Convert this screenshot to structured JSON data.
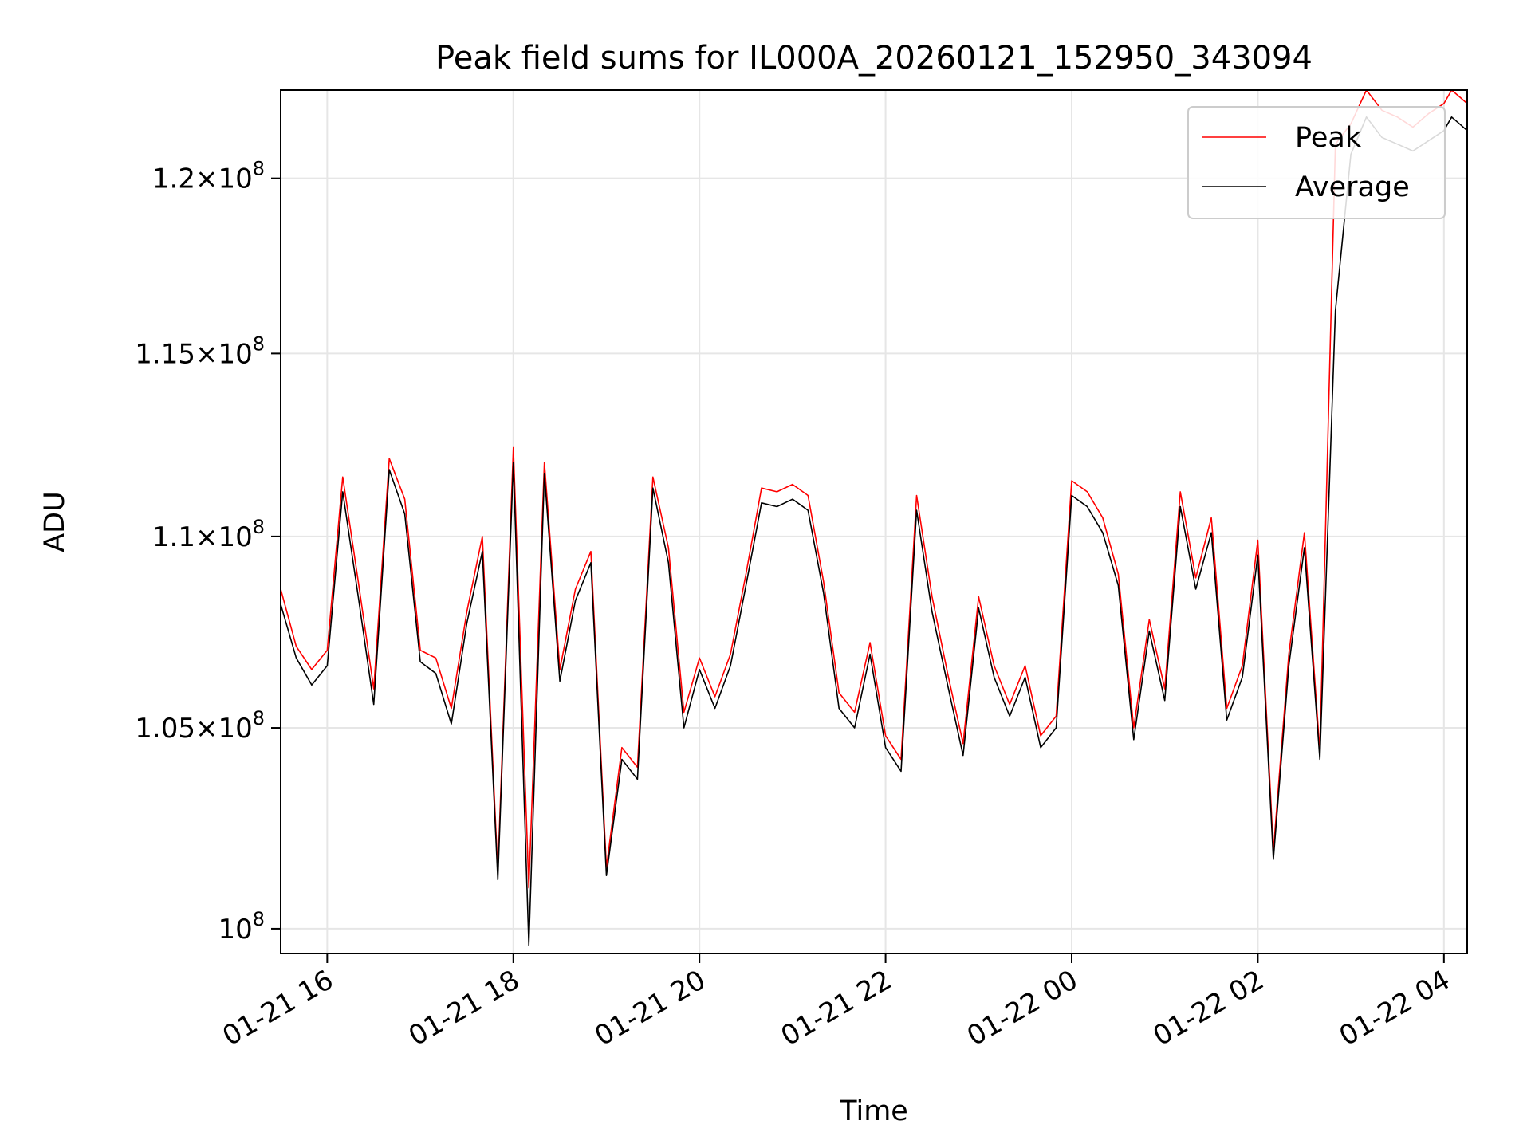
{
  "chart_data": {
    "type": "line",
    "title": "Peak field sums for IL000A_20260121_152950_343094",
    "xlabel": "Time",
    "ylabel": "ADU",
    "yscale": "log",
    "grid": true,
    "legend_position": "top-right",
    "xlim": [
      "2026-01-21 15:30",
      "2026-01-22 04:15"
    ],
    "ylim": [
      99400000,
      122600000
    ],
    "x_ticks": [
      {
        "value": "2026-01-21 16:00",
        "label": "01-21 16"
      },
      {
        "value": "2026-01-21 18:00",
        "label": "01-21 18"
      },
      {
        "value": "2026-01-21 20:00",
        "label": "01-21 20"
      },
      {
        "value": "2026-01-21 22:00",
        "label": "01-21 22"
      },
      {
        "value": "2026-01-22 00:00",
        "label": "01-22 00"
      },
      {
        "value": "2026-01-22 02:00",
        "label": "01-22 02"
      },
      {
        "value": "2026-01-22 04:00",
        "label": "01-22 04"
      }
    ],
    "y_ticks": [
      {
        "value": 100000000,
        "mantissa": "",
        "exponent": "8"
      },
      {
        "value": 105000000,
        "mantissa": "1.05",
        "exponent": "8"
      },
      {
        "value": 110000000,
        "mantissa": "1.1",
        "exponent": "8"
      },
      {
        "value": 115000000,
        "mantissa": "1.15",
        "exponent": "8"
      },
      {
        "value": 120000000,
        "mantissa": "1.2",
        "exponent": "8"
      }
    ],
    "series": [
      {
        "name": "Peak",
        "color": "#ff0000",
        "x": [
          "2026-01-21 15:30",
          "2026-01-21 15:40",
          "2026-01-21 15:50",
          "2026-01-21 16:00",
          "2026-01-21 16:10",
          "2026-01-21 16:20",
          "2026-01-21 16:30",
          "2026-01-21 16:40",
          "2026-01-21 16:50",
          "2026-01-21 17:00",
          "2026-01-21 17:10",
          "2026-01-21 17:20",
          "2026-01-21 17:30",
          "2026-01-21 17:40",
          "2026-01-21 17:50",
          "2026-01-21 18:00",
          "2026-01-21 18:10",
          "2026-01-21 18:20",
          "2026-01-21 18:30",
          "2026-01-21 18:40",
          "2026-01-21 18:50",
          "2026-01-21 19:00",
          "2026-01-21 19:10",
          "2026-01-21 19:20",
          "2026-01-21 19:30",
          "2026-01-21 19:40",
          "2026-01-21 19:50",
          "2026-01-21 20:00",
          "2026-01-21 20:10",
          "2026-01-21 20:20",
          "2026-01-21 20:30",
          "2026-01-21 20:40",
          "2026-01-21 20:50",
          "2026-01-21 21:00",
          "2026-01-21 21:10",
          "2026-01-21 21:20",
          "2026-01-21 21:30",
          "2026-01-21 21:40",
          "2026-01-21 21:50",
          "2026-01-21 22:00",
          "2026-01-21 22:10",
          "2026-01-21 22:20",
          "2026-01-21 22:30",
          "2026-01-21 22:40",
          "2026-01-21 22:50",
          "2026-01-21 23:00",
          "2026-01-21 23:10",
          "2026-01-21 23:20",
          "2026-01-21 23:30",
          "2026-01-21 23:40",
          "2026-01-21 23:50",
          "2026-01-22 00:00",
          "2026-01-22 00:10",
          "2026-01-22 00:20",
          "2026-01-22 00:30",
          "2026-01-22 00:40",
          "2026-01-22 00:50",
          "2026-01-22 01:00",
          "2026-01-22 01:10",
          "2026-01-22 01:20",
          "2026-01-22 01:30",
          "2026-01-22 01:40",
          "2026-01-22 01:50",
          "2026-01-22 02:00",
          "2026-01-22 02:10",
          "2026-01-22 02:20",
          "2026-01-22 02:30",
          "2026-01-22 02:40",
          "2026-01-22 02:50",
          "2026-01-22 03:00",
          "2026-01-22 03:10",
          "2026-01-22 03:20",
          "2026-01-22 03:30",
          "2026-01-22 03:40",
          "2026-01-22 03:50",
          "2026-01-22 04:00",
          "2026-01-22 04:05",
          "2026-01-22 04:10",
          "2026-01-22 04:15"
        ],
        "y": [
          108600000,
          107100000,
          106500000,
          107000000,
          111600000,
          108800000,
          106000000,
          112100000,
          111000000,
          107000000,
          106800000,
          105500000,
          108000000,
          110000000,
          101400000,
          112400000,
          101000000,
          112000000,
          106500000,
          108600000,
          109600000,
          101500000,
          104500000,
          104000000,
          111600000,
          109700000,
          105400000,
          106800000,
          105800000,
          106900000,
          109000000,
          111300000,
          111200000,
          111400000,
          111100000,
          108800000,
          105900000,
          105400000,
          107200000,
          104800000,
          104200000,
          111100000,
          108400000,
          106400000,
          104600000,
          108400000,
          106600000,
          105600000,
          106600000,
          104800000,
          105300000,
          111500000,
          111200000,
          110500000,
          109000000,
          105000000,
          107800000,
          106000000,
          111200000,
          108900000,
          110500000,
          105500000,
          106600000,
          109900000,
          101900000,
          106900000,
          110100000,
          104400000,
          121000000,
          121600000,
          122600000,
          122000000,
          121800000,
          121500000,
          121900000,
          122200000,
          122600000,
          122400000,
          122200000
        ]
      },
      {
        "name": "Average",
        "color": "#000000",
        "x": [
          "2026-01-21 15:30",
          "2026-01-21 15:40",
          "2026-01-21 15:50",
          "2026-01-21 16:00",
          "2026-01-21 16:10",
          "2026-01-21 16:20",
          "2026-01-21 16:30",
          "2026-01-21 16:40",
          "2026-01-21 16:50",
          "2026-01-21 17:00",
          "2026-01-21 17:10",
          "2026-01-21 17:20",
          "2026-01-21 17:30",
          "2026-01-21 17:40",
          "2026-01-21 17:50",
          "2026-01-21 18:00",
          "2026-01-21 18:10",
          "2026-01-21 18:20",
          "2026-01-21 18:30",
          "2026-01-21 18:40",
          "2026-01-21 18:50",
          "2026-01-21 19:00",
          "2026-01-21 19:10",
          "2026-01-21 19:20",
          "2026-01-21 19:30",
          "2026-01-21 19:40",
          "2026-01-21 19:50",
          "2026-01-21 20:00",
          "2026-01-21 20:10",
          "2026-01-21 20:20",
          "2026-01-21 20:30",
          "2026-01-21 20:40",
          "2026-01-21 20:50",
          "2026-01-21 21:00",
          "2026-01-21 21:10",
          "2026-01-21 21:20",
          "2026-01-21 21:30",
          "2026-01-21 21:40",
          "2026-01-21 21:50",
          "2026-01-21 22:00",
          "2026-01-21 22:10",
          "2026-01-21 22:20",
          "2026-01-21 22:30",
          "2026-01-21 22:40",
          "2026-01-21 22:50",
          "2026-01-21 23:00",
          "2026-01-21 23:10",
          "2026-01-21 23:20",
          "2026-01-21 23:30",
          "2026-01-21 23:40",
          "2026-01-21 23:50",
          "2026-01-22 00:00",
          "2026-01-22 00:10",
          "2026-01-22 00:20",
          "2026-01-22 00:30",
          "2026-01-22 00:40",
          "2026-01-22 00:50",
          "2026-01-22 01:00",
          "2026-01-22 01:10",
          "2026-01-22 01:20",
          "2026-01-22 01:30",
          "2026-01-22 01:40",
          "2026-01-22 01:50",
          "2026-01-22 02:00",
          "2026-01-22 02:10",
          "2026-01-22 02:20",
          "2026-01-22 02:30",
          "2026-01-22 02:40",
          "2026-01-22 02:50",
          "2026-01-22 03:00",
          "2026-01-22 03:10",
          "2026-01-22 03:20",
          "2026-01-22 03:30",
          "2026-01-22 03:40",
          "2026-01-22 03:50",
          "2026-01-22 04:00",
          "2026-01-22 04:05",
          "2026-01-22 04:10",
          "2026-01-22 04:15"
        ],
        "y": [
          108200000,
          106800000,
          106100000,
          106600000,
          111200000,
          108400000,
          105600000,
          111800000,
          110600000,
          106700000,
          106400000,
          105100000,
          107700000,
          109600000,
          101200000,
          112000000,
          99600000,
          111700000,
          106200000,
          108300000,
          109300000,
          101300000,
          104200000,
          103700000,
          111300000,
          109300000,
          105000000,
          106500000,
          105500000,
          106600000,
          108700000,
          110900000,
          110800000,
          111000000,
          110700000,
          108500000,
          105500000,
          105000000,
          106900000,
          104500000,
          103900000,
          110700000,
          108000000,
          106100000,
          104300000,
          108100000,
          106300000,
          105300000,
          106300000,
          104500000,
          105000000,
          111100000,
          110800000,
          110100000,
          108700000,
          104700000,
          107500000,
          105700000,
          110800000,
          108600000,
          110100000,
          105200000,
          106300000,
          109500000,
          101700000,
          106600000,
          109700000,
          104200000,
          116200000,
          120700000,
          121800000,
          121200000,
          121000000,
          120800000,
          121100000,
          121400000,
          121800000,
          121600000,
          121400000
        ]
      }
    ]
  }
}
